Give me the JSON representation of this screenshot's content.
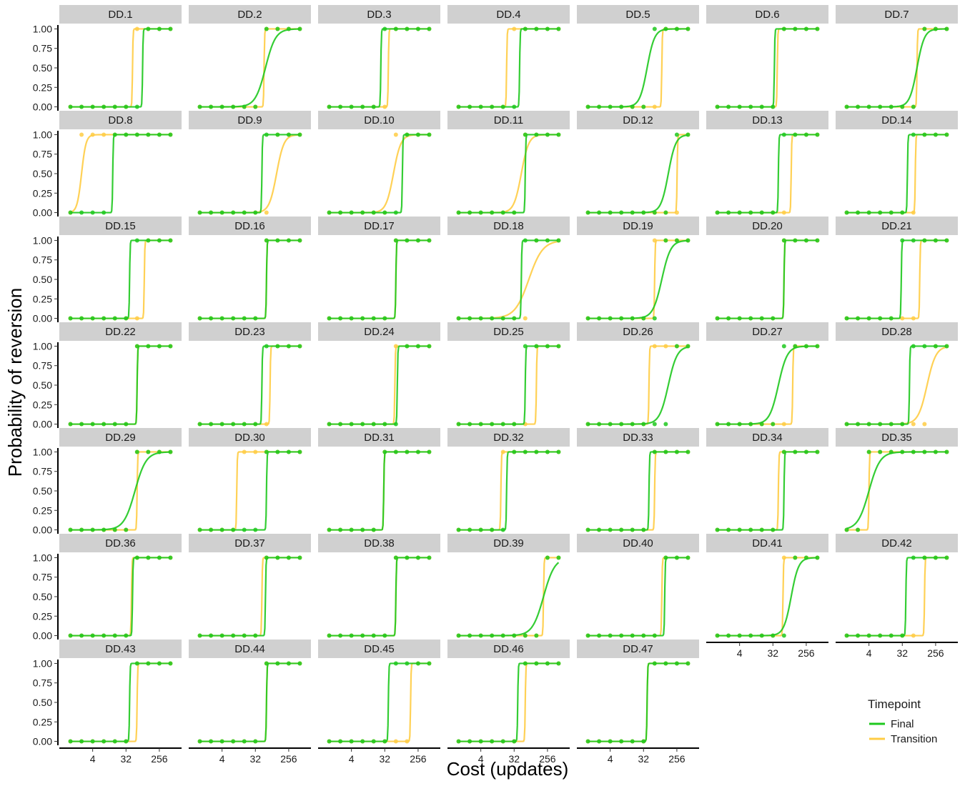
{
  "chart_data": {
    "type": "line",
    "facet_type": "small-multiples",
    "xlabel": "Cost (updates)",
    "ylabel": "Probability of reversion",
    "x_scale": "log2",
    "x_ticks": [
      4,
      32,
      256
    ],
    "x_tick_labels": [
      "4",
      "32",
      "256"
    ],
    "xlim": [
      0.5,
      1024
    ],
    "y_ticks": [
      0,
      0.25,
      0.5,
      0.75,
      1
    ],
    "y_tick_labels": [
      "0.00",
      "0.25",
      "0.50",
      "0.75",
      "1.00"
    ],
    "ylim": [
      -0.05,
      1.05
    ],
    "costs": [
      1,
      2,
      4,
      8,
      16,
      32,
      64,
      128,
      256,
      512
    ],
    "legend": {
      "title": "Timepoint",
      "position": "bottom-right"
    },
    "series_styles": [
      {
        "name": "Final",
        "color": "#1ec81e"
      },
      {
        "name": "Transition",
        "color": "#ffcc44"
      }
    ],
    "panels": [
      {
        "label": "DD.1",
        "final": {
          "threshold": 90,
          "steep": 40
        },
        "transition": {
          "threshold": 48,
          "steep": 40
        }
      },
      {
        "label": "DD.2",
        "final": {
          "threshold": 60,
          "steep": 2.2
        },
        "transition": {
          "threshold": 55,
          "steep": 40
        }
      },
      {
        "label": "DD.3",
        "final": {
          "threshold": 25,
          "steep": 40
        },
        "transition": {
          "threshold": 40,
          "steep": 40
        }
      },
      {
        "label": "DD.4",
        "final": {
          "threshold": 45,
          "steep": 40
        },
        "transition": {
          "threshold": 20,
          "steep": 40
        }
      },
      {
        "label": "DD.5",
        "final": {
          "threshold": 40,
          "steep": 3
        },
        "transition": {
          "threshold": 100,
          "steep": 40
        }
      },
      {
        "label": "DD.6",
        "final": {
          "threshold": 35,
          "steep": 40
        },
        "transition": {
          "threshold": 42,
          "steep": 40
        }
      },
      {
        "label": "DD.7",
        "final": {
          "threshold": 80,
          "steep": 3
        },
        "transition": {
          "threshold": 80,
          "steep": 40
        }
      },
      {
        "label": "DD.8",
        "final": {
          "threshold": 14,
          "steep": 40
        },
        "transition": {
          "threshold": 2,
          "steep": 5
        }
      },
      {
        "label": "DD.9",
        "final": {
          "threshold": 48,
          "steep": 40
        },
        "transition": {
          "threshold": 120,
          "steep": 3
        }
      },
      {
        "label": "DD.10",
        "final": {
          "threshold": 96,
          "steep": 40
        },
        "transition": {
          "threshold": 55,
          "steep": 3
        }
      },
      {
        "label": "DD.11",
        "final": {
          "threshold": 64,
          "steep": 40
        },
        "transition": {
          "threshold": 50,
          "steep": 3
        }
      },
      {
        "label": "DD.12",
        "final": {
          "threshold": 150,
          "steep": 3
        },
        "transition": {
          "threshold": 260,
          "steep": 40
        }
      },
      {
        "label": "DD.13",
        "final": {
          "threshold": 45,
          "steep": 40
        },
        "transition": {
          "threshold": 100,
          "steep": 40
        }
      },
      {
        "label": "DD.14",
        "final": {
          "threshold": 44,
          "steep": 40
        },
        "transition": {
          "threshold": 72,
          "steep": 40
        }
      },
      {
        "label": "DD.15",
        "final": {
          "threshold": 40,
          "steep": 40
        },
        "transition": {
          "threshold": 100,
          "steep": 40
        }
      },
      {
        "label": "DD.16",
        "final": {
          "threshold": 64,
          "steep": 40
        },
        "transition": {
          "threshold": 64,
          "steep": 40
        }
      },
      {
        "label": "DD.17",
        "final": {
          "threshold": 64,
          "steep": 40
        },
        "transition": {
          "threshold": 64,
          "steep": 40
        }
      },
      {
        "label": "DD.18",
        "final": {
          "threshold": 50,
          "steep": 40
        },
        "transition": {
          "threshold": 80,
          "steep": 1.6
        }
      },
      {
        "label": "DD.19",
        "final": {
          "threshold": 100,
          "steep": 2.5
        },
        "transition": {
          "threshold": 64,
          "steep": 40
        }
      },
      {
        "label": "DD.20",
        "final": {
          "threshold": 64,
          "steep": 40
        },
        "transition": {
          "threshold": 64,
          "steep": 40
        }
      },
      {
        "label": "DD.21",
        "final": {
          "threshold": 30,
          "steep": 40
        },
        "transition": {
          "threshold": 95,
          "steep": 40
        }
      },
      {
        "label": "DD.22",
        "final": {
          "threshold": 64,
          "steep": 40
        },
        "transition": {
          "threshold": 64,
          "steep": 40
        }
      },
      {
        "label": "DD.23",
        "final": {
          "threshold": 48,
          "steep": 40
        },
        "transition": {
          "threshold": 80,
          "steep": 40
        }
      },
      {
        "label": "DD.24",
        "final": {
          "threshold": 70,
          "steep": 40
        },
        "transition": {
          "threshold": 60,
          "steep": 40
        }
      },
      {
        "label": "DD.25",
        "final": {
          "threshold": 64,
          "steep": 40
        },
        "transition": {
          "threshold": 128,
          "steep": 40
        }
      },
      {
        "label": "DD.26",
        "final": {
          "threshold": 150,
          "steep": 2.5
        },
        "transition": {
          "threshold": 45,
          "steep": 40
        }
      },
      {
        "label": "DD.27",
        "final": {
          "threshold": 45,
          "steep": 2.5
        },
        "transition": {
          "threshold": 110,
          "steep": 40
        }
      },
      {
        "label": "DD.28",
        "final": {
          "threshold": 50,
          "steep": 40
        },
        "transition": {
          "threshold": 150,
          "steep": 2.5
        }
      },
      {
        "label": "DD.29",
        "final": {
          "threshold": 56,
          "steep": 2
        },
        "transition": {
          "threshold": 64,
          "steep": 40
        }
      },
      {
        "label": "DD.30",
        "final": {
          "threshold": 64,
          "steep": 40
        },
        "transition": {
          "threshold": 10,
          "steep": 40
        }
      },
      {
        "label": "DD.31",
        "final": {
          "threshold": 30,
          "steep": 40
        },
        "transition": {
          "threshold": 30,
          "steep": 40
        }
      },
      {
        "label": "DD.32",
        "final": {
          "threshold": 20,
          "steep": 40
        },
        "transition": {
          "threshold": 14,
          "steep": 40
        }
      },
      {
        "label": "DD.33",
        "final": {
          "threshold": 45,
          "steep": 40
        },
        "transition": {
          "threshold": 64,
          "steep": 40
        }
      },
      {
        "label": "DD.34",
        "final": {
          "threshold": 64,
          "steep": 40
        },
        "transition": {
          "threshold": 45,
          "steep": 40
        }
      },
      {
        "label": "DD.35",
        "final": {
          "threshold": 4,
          "steep": 2
        },
        "transition": {
          "threshold": 4,
          "steep": 40
        }
      },
      {
        "label": "DD.36",
        "final": {
          "threshold": 48,
          "steep": 40
        },
        "transition": {
          "threshold": 45,
          "steep": 40
        }
      },
      {
        "label": "DD.37",
        "final": {
          "threshold": 60,
          "steep": 40
        },
        "transition": {
          "threshold": 48,
          "steep": 40
        }
      },
      {
        "label": "DD.38",
        "final": {
          "threshold": 64,
          "steep": 40
        },
        "transition": {
          "threshold": 64,
          "steep": 40
        }
      },
      {
        "label": "DD.39",
        "final": {
          "threshold": 200,
          "steep": 2
        },
        "transition": {
          "threshold": 200,
          "steep": 40
        }
      },
      {
        "label": "DD.40",
        "final": {
          "threshold": 120,
          "steep": 40
        },
        "transition": {
          "threshold": 100,
          "steep": 40
        }
      },
      {
        "label": "DD.41",
        "final": {
          "threshold": 100,
          "steep": 3
        },
        "transition": {
          "threshold": 60,
          "steep": 40
        }
      },
      {
        "label": "DD.42",
        "final": {
          "threshold": 40,
          "steep": 40
        },
        "transition": {
          "threshold": 128,
          "steep": 40
        }
      },
      {
        "label": "DD.43",
        "final": {
          "threshold": 40,
          "steep": 40
        },
        "transition": {
          "threshold": 64,
          "steep": 40
        }
      },
      {
        "label": "DD.44",
        "final": {
          "threshold": 64,
          "steep": 40
        },
        "transition": {
          "threshold": 64,
          "steep": 40
        }
      },
      {
        "label": "DD.45",
        "final": {
          "threshold": 40,
          "steep": 40
        },
        "transition": {
          "threshold": 160,
          "steep": 40
        }
      },
      {
        "label": "DD.46",
        "final": {
          "threshold": 40,
          "steep": 40
        },
        "transition": {
          "threshold": 64,
          "steep": 40
        }
      },
      {
        "label": "DD.47",
        "final": {
          "threshold": 40,
          "steep": 40
        },
        "transition": {
          "threshold": 40,
          "steep": 40
        }
      }
    ]
  }
}
